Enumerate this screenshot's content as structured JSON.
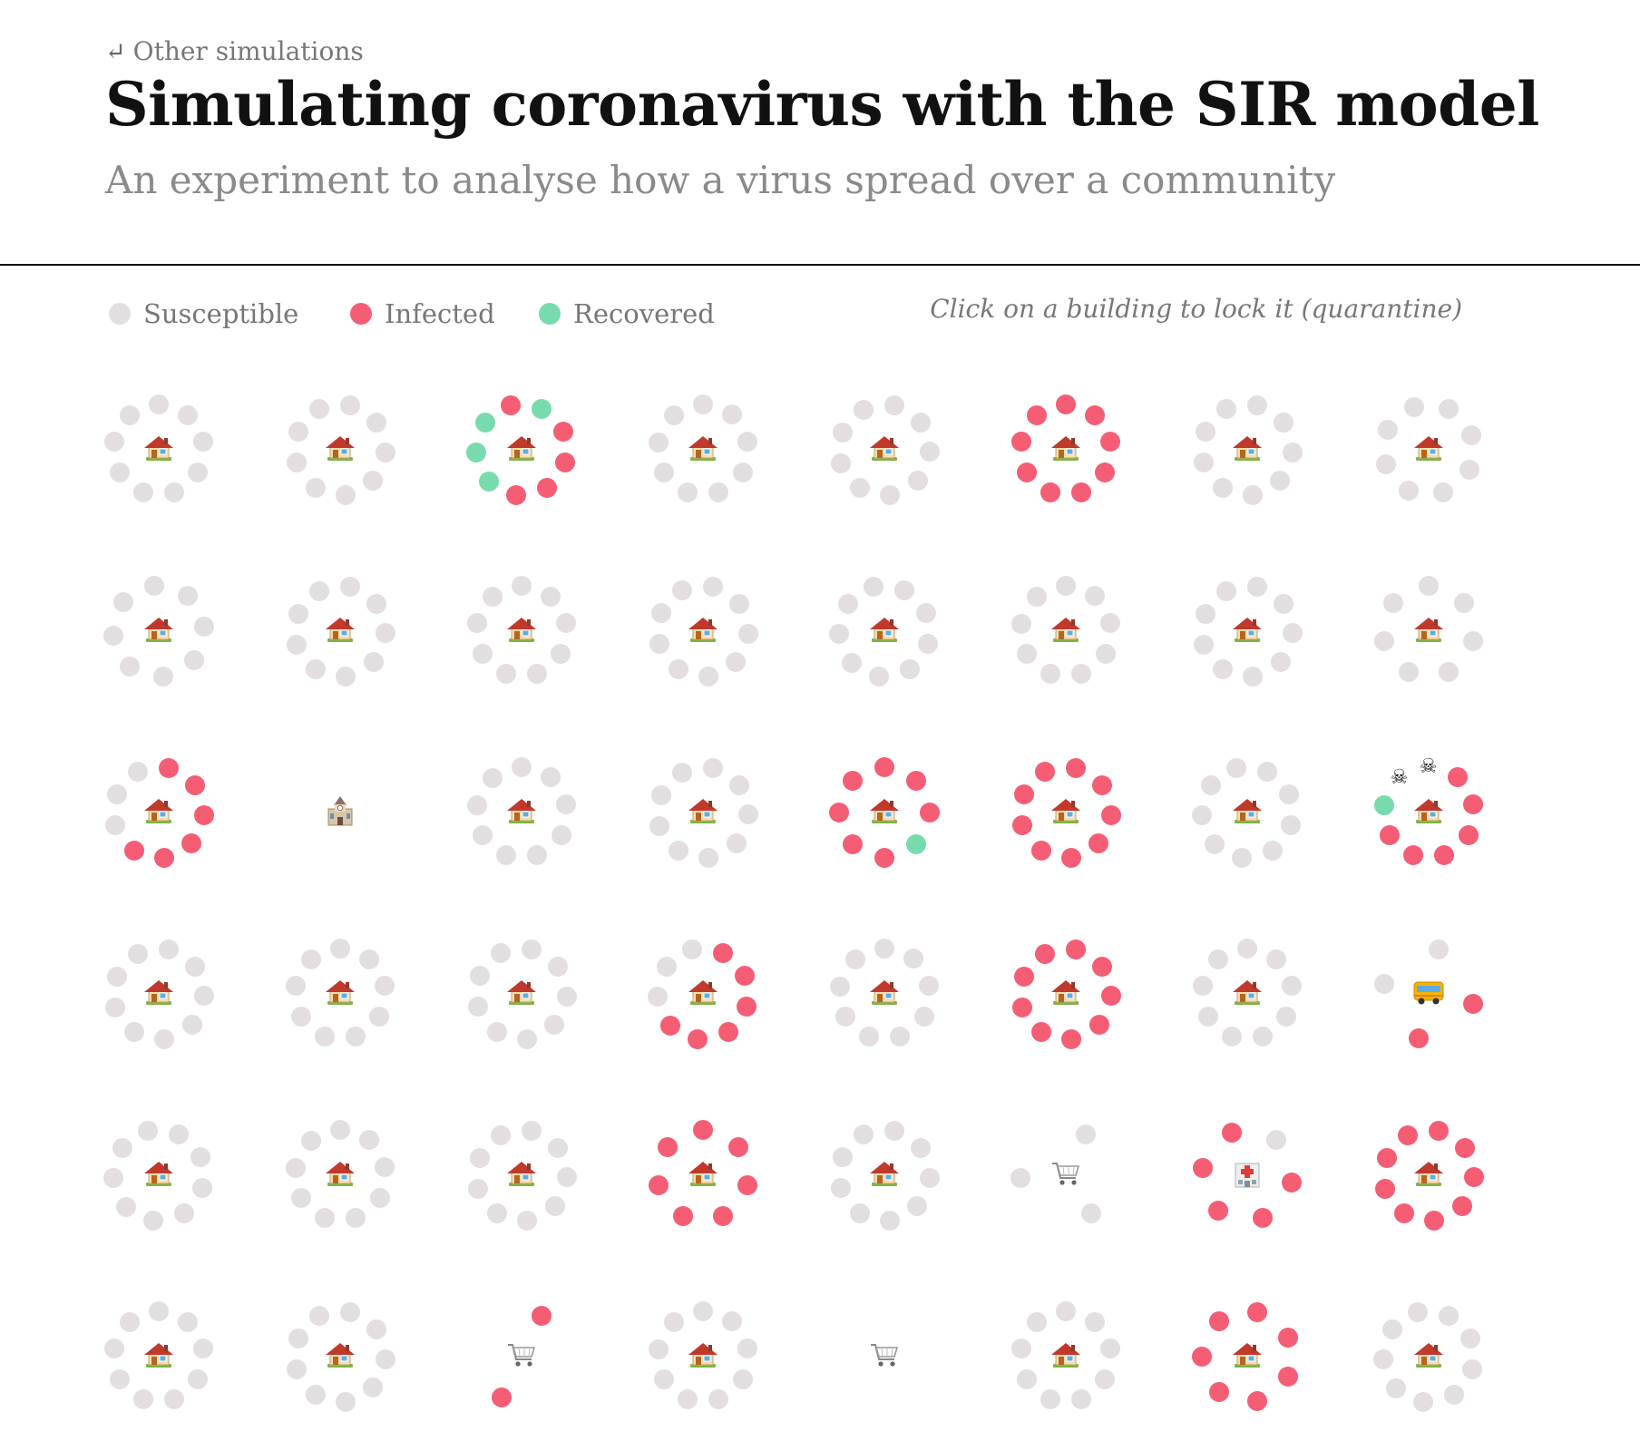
{
  "header": {
    "back_label": "Other simulations",
    "back_icon": "return-arrow-icon",
    "title": "Simulating coronavirus with the SIR model",
    "subtitle": "An experiment to analyse how a virus spread over a community"
  },
  "legend": {
    "items": [
      {
        "label": "Susceptible",
        "color": "#e3dedf"
      },
      {
        "label": "Infected",
        "color": "#f55d75"
      },
      {
        "label": "Recovered",
        "color": "#78dbad"
      }
    ],
    "hint": "Click on a building to lock it (quarantine)"
  },
  "colors": {
    "S": "#e3dedf",
    "I": "#f55d75",
    "R": "#78dbad",
    "D": "#ffffff"
  },
  "grid": {
    "rows": [
      [
        {
          "building": "house-icon",
          "people": "SSSSSSSSS"
        },
        {
          "building": "house-icon",
          "people": "SSSSSSSSS"
        },
        {
          "building": "house-icon",
          "people": "RIIIIRRRI"
        },
        {
          "building": "house-icon",
          "people": "SSSSSSSSS"
        },
        {
          "building": "house-icon",
          "people": "SSSSSSSSS"
        },
        {
          "building": "house-icon",
          "people": "IIIIIIIII"
        },
        {
          "building": "house-icon",
          "people": "SSSSSSSSS"
        },
        {
          "building": "house-icon",
          "people": "SSSSSSSS"
        }
      ],
      [
        {
          "building": "house-icon",
          "people": "SSSSSSSS"
        },
        {
          "building": "house-icon",
          "people": "SSSSSSSSS"
        },
        {
          "building": "house-icon",
          "people": "SSSSSSSSS"
        },
        {
          "building": "house-icon",
          "people": "SSSSSSSSS"
        },
        {
          "building": "house-icon",
          "people": "SSSSSSSSS"
        },
        {
          "building": "house-icon",
          "people": "SSSSSSSSS"
        },
        {
          "building": "house-icon",
          "people": "SSSSSSSSS"
        },
        {
          "building": "house-icon",
          "people": "SSSSSSS"
        }
      ],
      [
        {
          "building": "house-icon",
          "people": "IIIIIISSS"
        },
        {
          "building": "church-icon",
          "people": ""
        },
        {
          "building": "house-icon",
          "people": "SSSSSSSSS"
        },
        {
          "building": "house-icon",
          "people": "SSSSSSSSS"
        },
        {
          "building": "house-icon",
          "people": "IIIRIIII"
        },
        {
          "building": "house-icon",
          "people": "IIIIIIIII"
        },
        {
          "building": "house-icon",
          "people": "SSSSSSSSS"
        },
        {
          "building": "house-icon",
          "people": "IIIIIIRDD"
        }
      ],
      [
        {
          "building": "house-icon",
          "people": "SSSSSSSSS"
        },
        {
          "building": "house-icon",
          "people": "SSSSSSSSS"
        },
        {
          "building": "house-icon",
          "people": "SSSSSSSSS"
        },
        {
          "building": "house-icon",
          "people": "IIIIIISSS"
        },
        {
          "building": "house-icon",
          "people": "SSSSSSSSS"
        },
        {
          "building": "house-icon",
          "people": "IIIIIIIII"
        },
        {
          "building": "house-icon",
          "people": "SSSSSSSSS"
        },
        {
          "building": "bus-icon",
          "people": "SIIS"
        }
      ],
      [
        {
          "building": "house-icon",
          "people": "SSSSSSSSS"
        },
        {
          "building": "house-icon",
          "people": "SSSSSSSSS"
        },
        {
          "building": "house-icon",
          "people": "SSSSSSSSS"
        },
        {
          "building": "house-icon",
          "people": "IIIIIII"
        },
        {
          "building": "house-icon",
          "people": "SSSSSSSSS"
        },
        {
          "building": "cart-icon",
          "people": "SSS"
        },
        {
          "building": "hospital-icon",
          "people": "SIIIII"
        },
        {
          "building": "house-icon",
          "people": "IIIIIIIII"
        }
      ],
      [
        {
          "building": "house-icon",
          "people": "SSSSSSSSS"
        },
        {
          "building": "house-icon",
          "people": "SSSSSSSSS"
        },
        {
          "building": "cart-icon",
          "people": "II"
        },
        {
          "building": "house-icon",
          "people": "SSSSSSSSS"
        },
        {
          "building": "cart-icon",
          "people": ""
        },
        {
          "building": "house-icon",
          "people": "SSSSSSSSS"
        },
        {
          "building": "house-icon",
          "people": "IIIIIII"
        },
        {
          "building": "house-icon",
          "people": "SSSSSSSSS"
        }
      ]
    ]
  }
}
